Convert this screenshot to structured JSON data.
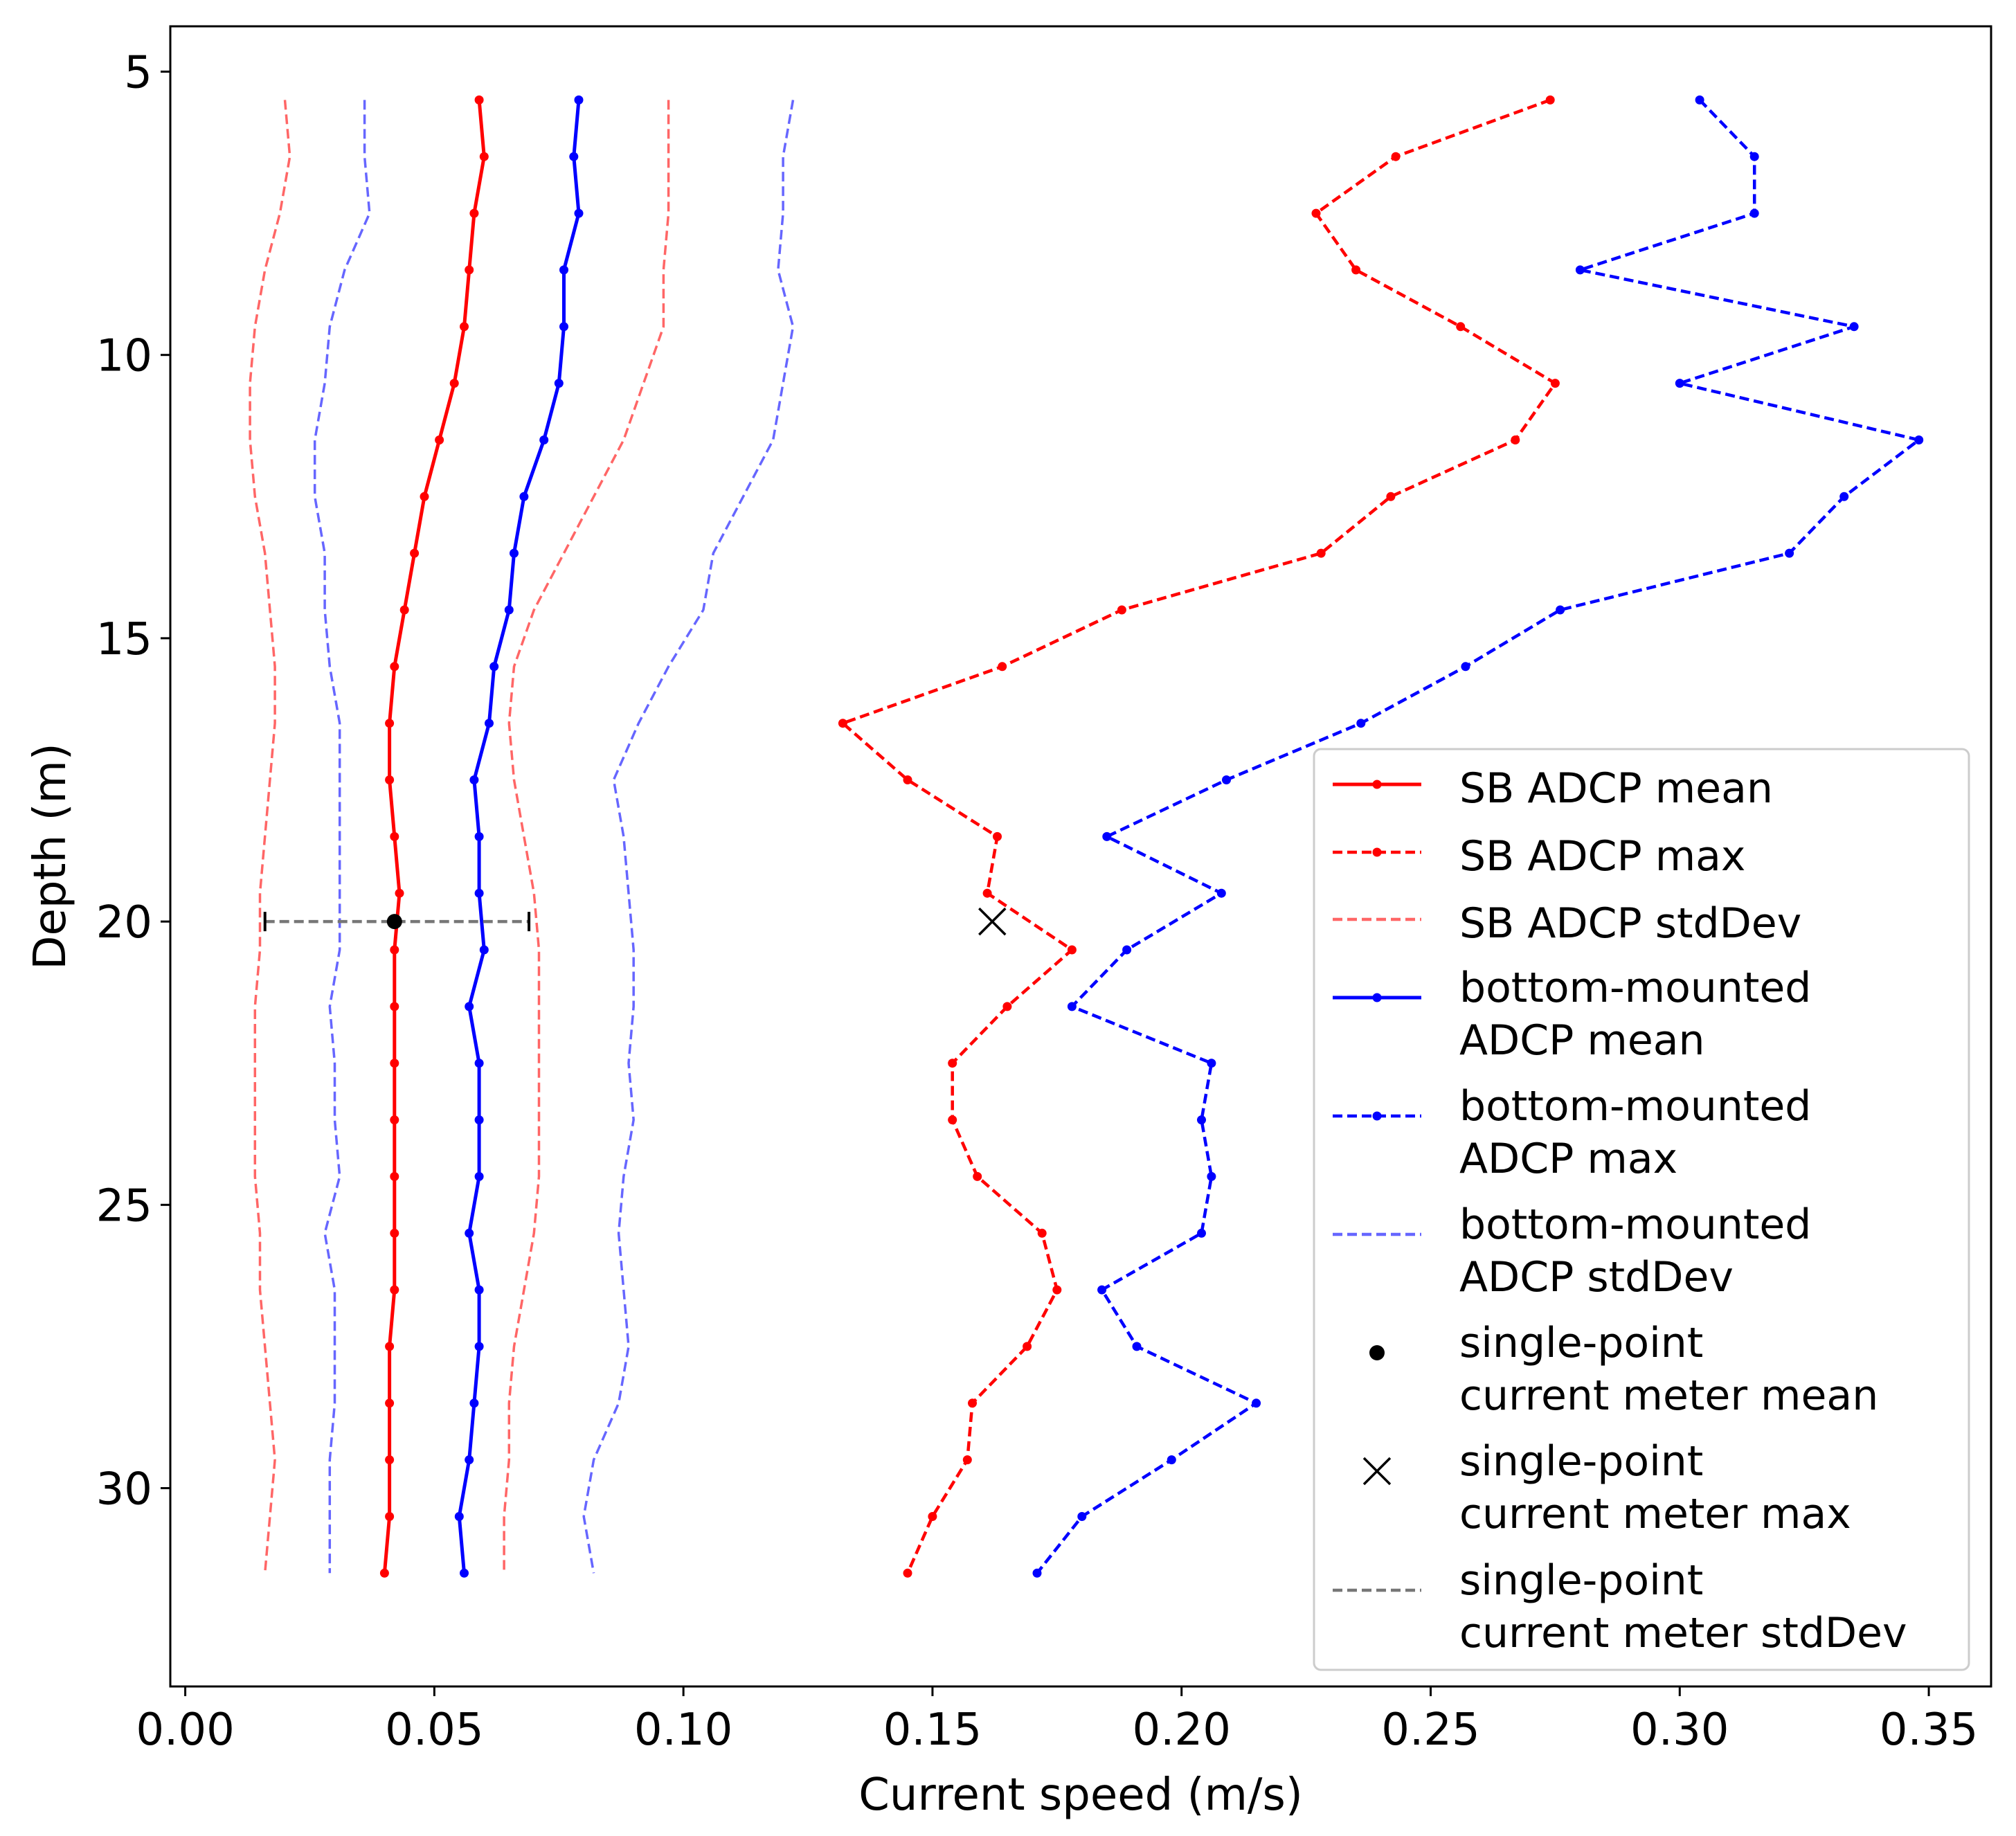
{
  "chart_data": {
    "type": "line",
    "title": "",
    "xlabel": "Current speed (m/s)",
    "ylabel": "Depth (m)",
    "xlim": [
      -0.003,
      0.3625
    ],
    "ylim": [
      33.5,
      4.2
    ],
    "y_inverted": true,
    "xticks": [
      0.0,
      0.05,
      0.1,
      0.15,
      0.2,
      0.25,
      0.3,
      0.35
    ],
    "xtick_labels": [
      "0.00",
      "0.05",
      "0.10",
      "0.15",
      "0.20",
      "0.25",
      "0.30",
      "0.35"
    ],
    "yticks": [
      5,
      10,
      15,
      20,
      25,
      30
    ],
    "ytick_labels": [
      "5",
      "10",
      "15",
      "20",
      "25",
      "30"
    ],
    "grid": false,
    "legend_position": "lower-right",
    "depths": [
      5.5,
      6.5,
      7.5,
      8.5,
      9.5,
      10.5,
      11.5,
      12.5,
      13.5,
      14.5,
      15.5,
      16.5,
      17.5,
      18.5,
      19.5,
      20.5,
      21.5,
      22.5,
      23.5,
      24.5,
      25.5,
      26.5,
      27.5,
      28.5,
      29.5,
      30.5,
      31.5
    ],
    "series": [
      {
        "name": "SB ADCP mean",
        "color": "#ff0000",
        "style": "solid",
        "marker": "dot",
        "values": [
          0.059,
          0.06,
          0.058,
          0.057,
          0.056,
          0.054,
          0.051,
          0.048,
          0.046,
          0.044,
          0.042,
          0.041,
          0.041,
          0.042,
          0.043,
          0.042,
          0.042,
          0.042,
          0.042,
          0.042,
          0.042,
          0.042,
          0.041,
          0.041,
          0.041,
          0.041,
          0.04
        ]
      },
      {
        "name": "SB ADCP max",
        "color": "#ff0000",
        "style": "dashed",
        "marker": "dot",
        "values": [
          0.274,
          0.243,
          0.227,
          0.235,
          0.256,
          0.275,
          0.267,
          0.242,
          0.228,
          0.188,
          0.164,
          0.132,
          0.145,
          0.163,
          0.161,
          0.178,
          0.165,
          0.154,
          0.154,
          0.159,
          0.172,
          0.175,
          0.169,
          0.158,
          0.157,
          0.15,
          0.145
        ]
      },
      {
        "name": "SB ADCP stdDev",
        "color": "#ff6666",
        "style": "dashed",
        "marker": "none",
        "band": true,
        "lower": [
          0.02,
          0.021,
          0.019,
          0.016,
          0.014,
          0.013,
          0.013,
          0.014,
          0.016,
          0.017,
          0.018,
          0.018,
          0.017,
          0.016,
          0.015,
          0.015,
          0.014,
          0.014,
          0.014,
          0.014,
          0.015,
          0.015,
          0.016,
          0.017,
          0.018,
          0.017,
          0.016
        ],
        "upper": [
          0.097,
          0.097,
          0.097,
          0.096,
          0.096,
          0.092,
          0.088,
          0.082,
          0.076,
          0.07,
          0.066,
          0.065,
          0.066,
          0.068,
          0.07,
          0.071,
          0.071,
          0.071,
          0.071,
          0.071,
          0.07,
          0.068,
          0.066,
          0.065,
          0.065,
          0.064,
          0.064
        ]
      },
      {
        "name": "bottom-mounted ADCP mean",
        "color": "#0000ff",
        "style": "solid",
        "marker": "dot",
        "values": [
          0.079,
          0.078,
          0.079,
          0.076,
          0.076,
          0.075,
          0.072,
          0.068,
          0.066,
          0.065,
          0.062,
          0.061,
          0.058,
          0.059,
          0.059,
          0.06,
          0.057,
          0.059,
          0.059,
          0.059,
          0.057,
          0.059,
          0.059,
          0.058,
          0.057,
          0.055,
          0.056
        ]
      },
      {
        "name": "bottom-mounted ADCP max",
        "color": "#0000ff",
        "style": "dashed",
        "marker": "dot",
        "values": [
          0.304,
          0.315,
          0.315,
          0.28,
          0.335,
          0.3,
          0.348,
          0.333,
          0.322,
          0.276,
          0.257,
          0.236,
          0.209,
          0.185,
          0.208,
          0.189,
          0.178,
          0.206,
          0.204,
          0.206,
          0.204,
          0.184,
          0.191,
          0.215,
          0.198,
          0.18,
          0.171
        ]
      },
      {
        "name": "bottom-mounted ADCP stdDev",
        "color": "#6666ff",
        "style": "dashed",
        "marker": "none",
        "band": true,
        "lower": [
          0.036,
          0.036,
          0.037,
          0.032,
          0.029,
          0.028,
          0.026,
          0.026,
          0.028,
          0.028,
          0.029,
          0.031,
          0.031,
          0.031,
          0.031,
          0.031,
          0.029,
          0.03,
          0.03,
          0.031,
          0.028,
          0.03,
          0.03,
          0.03,
          0.029,
          0.029,
          0.029
        ],
        "upper": [
          0.122,
          0.12,
          0.12,
          0.119,
          0.122,
          0.12,
          0.118,
          0.112,
          0.106,
          0.104,
          0.097,
          0.091,
          0.086,
          0.088,
          0.089,
          0.09,
          0.09,
          0.089,
          0.09,
          0.088,
          0.087,
          0.088,
          0.089,
          0.087,
          0.082,
          0.08,
          0.082
        ]
      }
    ],
    "single_point": {
      "depth": 20,
      "mean_name": "single-point current meter mean",
      "mean": 0.042,
      "max_name": "single-point current meter max",
      "max": 0.162,
      "stddev_name": "single-point current meter stdDev",
      "stddev_range": [
        0.016,
        0.069
      ],
      "mean_color": "#000000",
      "stddev_color": "#777777"
    },
    "legend": [
      {
        "line1": "SB ADCP mean",
        "line2": "",
        "kind": "solid-dot",
        "color": "#ff0000"
      },
      {
        "line1": "SB ADCP max",
        "line2": "",
        "kind": "dashed-dot",
        "color": "#ff0000"
      },
      {
        "line1": "SB ADCP stdDev",
        "line2": "",
        "kind": "dashed",
        "color": "#ff6666"
      },
      {
        "line1": "bottom-mounted",
        "line2": "ADCP mean",
        "kind": "solid-dot",
        "color": "#0000ff"
      },
      {
        "line1": "bottom-mounted",
        "line2": "ADCP max",
        "kind": "dashed-dot",
        "color": "#0000ff"
      },
      {
        "line1": "bottom-mounted",
        "line2": "ADCP stdDev",
        "kind": "dashed",
        "color": "#6666ff"
      },
      {
        "line1": "single-point",
        "line2": "current meter mean",
        "kind": "big-dot",
        "color": "#000000"
      },
      {
        "line1": "single-point",
        "line2": "current meter max",
        "kind": "x-marker",
        "color": "#000000"
      },
      {
        "line1": "single-point",
        "line2": "current meter stdDev",
        "kind": "dashed",
        "color": "#777777"
      }
    ]
  }
}
